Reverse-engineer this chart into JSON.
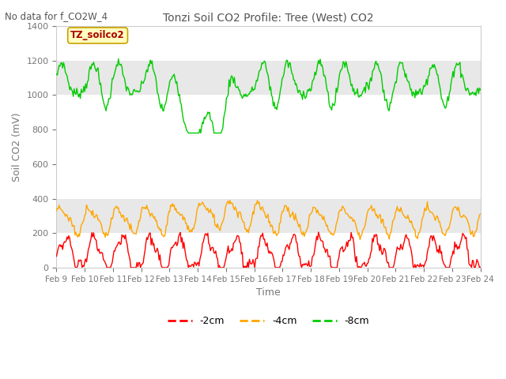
{
  "title": "Tonzi Soil CO2 Profile: Tree (West) CO2",
  "no_data_text": "No data for f_CO2W_4",
  "box_label": "TZ_soilco2",
  "ylabel": "Soil CO2 (mV)",
  "xlabel": "Time",
  "ylim": [
    0,
    1400
  ],
  "x_labels": [
    "Feb 9",
    "Feb 10",
    "Feb 11",
    "Feb 12",
    "Feb 13",
    "Feb 14",
    "Feb 15",
    "Feb 16",
    "Feb 17",
    "Feb 18",
    "Feb 19",
    "Feb 20",
    "Feb 21",
    "Feb 22",
    "Feb 23",
    "Feb 24"
  ],
  "legend_labels": [
    "-2cm",
    "-4cm",
    "-8cm"
  ],
  "line_colors": [
    "#ff0000",
    "#ffa500",
    "#00cc00"
  ],
  "band_color": "#e8e8e8",
  "band_ranges": [
    [
      1000,
      1200
    ],
    [
      200,
      400
    ]
  ],
  "box_facecolor": "#ffffc0",
  "box_edgecolor": "#c8a000",
  "title_color": "#555555",
  "nodata_color": "#555555",
  "tick_color": "#777777",
  "background_color": "#ffffff",
  "spine_color": "#cccccc"
}
